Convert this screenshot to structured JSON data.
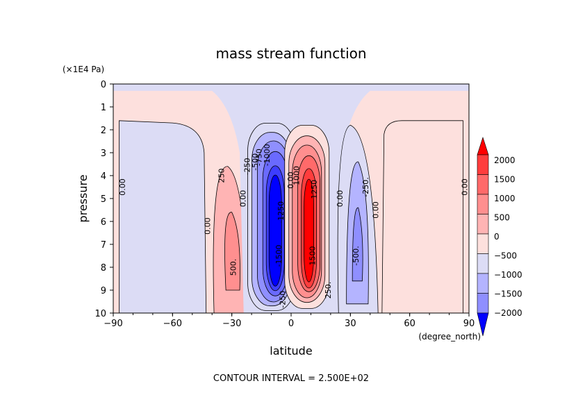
{
  "chart_data": {
    "type": "heatmap",
    "title": "mass stream function",
    "xlabel": "latitude",
    "x_units": "(degree_north)",
    "ylabel": "pressure",
    "y_units": "(×1E4 Pa)",
    "xlim": [
      -90,
      90
    ],
    "ylim": [
      0,
      10
    ],
    "y_inverted": true,
    "xticks": [
      "−90",
      "−60",
      "−30",
      "0",
      "30",
      "60",
      "90"
    ],
    "yticks": [
      "0",
      "1",
      "2",
      "3",
      "4",
      "5",
      "6",
      "7",
      "8",
      "9",
      "10"
    ],
    "footer": "CONTOUR INTERVAL = 2.500E+02",
    "colorbar": {
      "labels": [
        "2000",
        "1500",
        "1000",
        "500",
        "0",
        "−500",
        "−1000",
        "−1500",
        "−2000"
      ],
      "colors": [
        "#ff0000",
        "#ff3d3d",
        "#ff6a6a",
        "#ff8f8f",
        "#ffb4b4",
        "#fde0dd",
        "#dcdcf5",
        "#b4b4ff",
        "#8f8fff",
        "#6a6aff",
        "#3d3dff",
        "#0000ff"
      ],
      "extend": "both"
    },
    "contour_labels": [
      {
        "text": "0.00",
        "lat": -85,
        "p": 4.5
      },
      {
        "text": "250",
        "lat": -35,
        "p": 4.0
      },
      {
        "text": "0.00",
        "lat": -42,
        "p": 6.2
      },
      {
        "text": "500.",
        "lat": -29,
        "p": 8.0
      },
      {
        "text": "0.00",
        "lat": -24,
        "p": 5.0
      },
      {
        "text": "-250",
        "lat": -22,
        "p": 3.6
      },
      {
        "text": "-500",
        "lat": -18,
        "p": 3.4
      },
      {
        "text": "-750",
        "lat": -16,
        "p": 3.2
      },
      {
        "text": "-1000",
        "lat": -12,
        "p": 3.1
      },
      {
        "text": "-1250",
        "lat": -5,
        "p": 5.6
      },
      {
        "text": "-1500",
        "lat": -6,
        "p": 7.5
      },
      {
        "text": "-250",
        "lat": -4,
        "p": 9.4
      },
      {
        "text": "0.00",
        "lat": 0,
        "p": 4.2
      },
      {
        "text": "1000",
        "lat": 3,
        "p": 4.0
      },
      {
        "text": "1250",
        "lat": 12,
        "p": 4.6
      },
      {
        "text": "1500",
        "lat": 11,
        "p": 7.5
      },
      {
        "text": "250.",
        "lat": 19,
        "p": 9.0
      },
      {
        "text": "0.00",
        "lat": 25,
        "p": 5.0
      },
      {
        "text": "-250.",
        "lat": 38,
        "p": 4.5
      },
      {
        "text": "0.00",
        "lat": 43,
        "p": 5.5
      },
      {
        "text": "-500.",
        "lat": 33,
        "p": 7.5
      },
      {
        "text": "0.00",
        "lat": 88,
        "p": 4.5
      }
    ]
  }
}
